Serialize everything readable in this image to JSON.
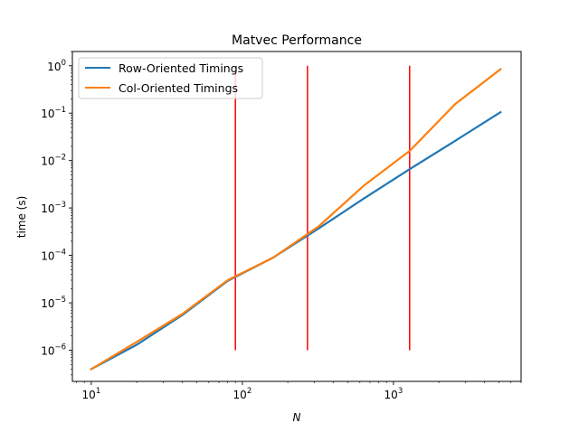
{
  "chart_data": {
    "type": "line",
    "title": "Matvec Performance",
    "xlabel": "N",
    "ylabel": "time (s)",
    "xscale": "log",
    "yscale": "log",
    "xlim": [
      7.5,
      7000
    ],
    "ylim": [
      2.2e-07,
      2.0
    ],
    "x_ticks": [
      {
        "value": 10,
        "base": "10",
        "exp": "1"
      },
      {
        "value": 100,
        "base": "10",
        "exp": "2"
      },
      {
        "value": 1000,
        "base": "10",
        "exp": "3"
      }
    ],
    "y_ticks": [
      {
        "value": 1e-06,
        "base": "10",
        "exp": "−6"
      },
      {
        "value": 1e-05,
        "base": "10",
        "exp": "−5"
      },
      {
        "value": 0.0001,
        "base": "10",
        "exp": "−4"
      },
      {
        "value": 0.001,
        "base": "10",
        "exp": "−3"
      },
      {
        "value": 0.01,
        "base": "10",
        "exp": "−2"
      },
      {
        "value": 0.1,
        "base": "10",
        "exp": "−1"
      },
      {
        "value": 1,
        "base": "10",
        "exp": "0"
      }
    ],
    "grid": false,
    "legend_position": "top-left",
    "series": [
      {
        "name": "Row-Oriented Timings",
        "color": "#1f77b4",
        "x": [
          10,
          20,
          40,
          80,
          160,
          320,
          640,
          1280,
          2560,
          5120
        ],
        "y": [
          4e-07,
          1.3e-06,
          5.5e-06,
          2.9e-05,
          9e-05,
          0.00037,
          0.0016,
          0.0066,
          0.026,
          0.105
        ]
      },
      {
        "name": "Col-Oriented Timings",
        "color": "#ff7f0e",
        "x": [
          10,
          20,
          40,
          80,
          160,
          320,
          640,
          1280,
          2560,
          5120
        ],
        "y": [
          4e-07,
          1.5e-06,
          5.8e-06,
          3e-05,
          9e-05,
          0.00041,
          0.003,
          0.016,
          0.155,
          0.85
        ]
      }
    ],
    "vlines": {
      "color": "#ff0000",
      "x": [
        90,
        270,
        1280
      ],
      "ymin": 1e-06,
      "ymax": 1
    }
  }
}
